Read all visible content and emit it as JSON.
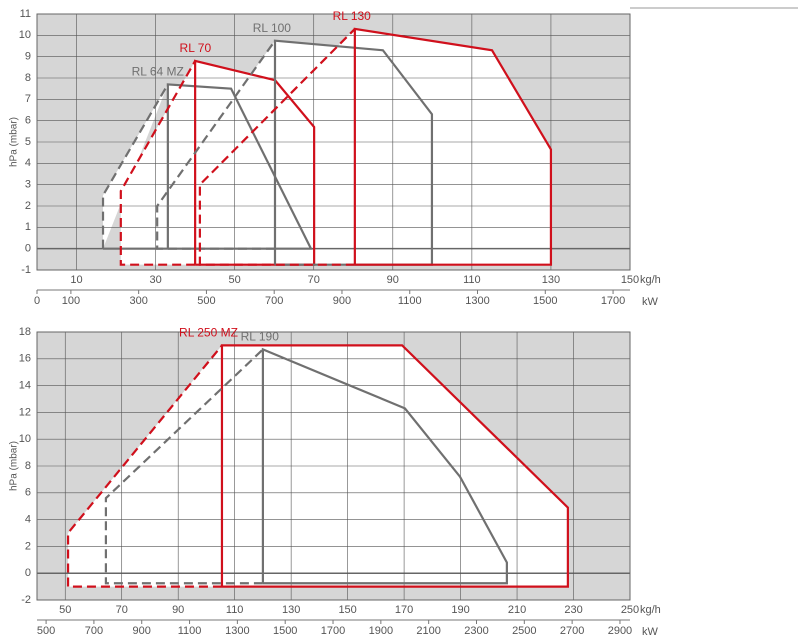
{
  "chart_data": [
    {
      "type": "line",
      "xlabel": "kg/h",
      "x2label": "kW",
      "ylabel": "hPa (mbar)",
      "xlim": [
        0,
        150
      ],
      "xticks": [
        10,
        30,
        50,
        70,
        90,
        110,
        130,
        150
      ],
      "x2lim": [
        0,
        1750
      ],
      "x2ticks": [
        0,
        100,
        300,
        500,
        700,
        900,
        1100,
        1300,
        1500,
        1700
      ],
      "ylim": [
        -1,
        11
      ],
      "yticks": [
        -1,
        0,
        1,
        2,
        3,
        4,
        5,
        6,
        7,
        8,
        9,
        10,
        11
      ],
      "grid": true,
      "series": [
        {
          "name": "RL 64 MZ",
          "color": "#707070",
          "x": [
            33.1,
            33.1,
            49.1,
            69.3,
            16.7
          ],
          "y": [
            0,
            7.7,
            7.5,
            0,
            0
          ],
          "dash_x": [
            16.7,
            16.7,
            33.1
          ],
          "dash_y": [
            0,
            2.5,
            7.7
          ]
        },
        {
          "name": "RL 70",
          "color": "#d0101c",
          "x": [
            40,
            40,
            60.2,
            70.1,
            70.1,
            40
          ],
          "y": [
            -0.75,
            8.8,
            7.9,
            5.7,
            -0.75,
            -0.75
          ],
          "dash_x": [
            40,
            21.2,
            21.2,
            40
          ],
          "dash_y": [
            -0.75,
            -0.75,
            2.7,
            8.8
          ]
        },
        {
          "name": "RL 100",
          "color": "#707070",
          "x": [
            60.2,
            60.2,
            87.5,
            99.9,
            99.9,
            60.2
          ],
          "y": [
            -0.75,
            9.75,
            9.3,
            6.3,
            -0.75,
            -0.75
          ],
          "dash_x": [
            60.2,
            30.4,
            30.4,
            60.2
          ],
          "dash_y": [
            0,
            0,
            2.0,
            9.75
          ]
        },
        {
          "name": "RL 130",
          "color": "#d0101c",
          "x": [
            80.4,
            80.4,
            115.1,
            130,
            130,
            80.4
          ],
          "y": [
            -0.75,
            10.3,
            9.3,
            4.65,
            -0.75,
            -0.75
          ],
          "dash_x": [
            80.4,
            41.2,
            41.2,
            80.4
          ],
          "dash_y": [
            -0.75,
            -0.75,
            3.0,
            10.3
          ]
        }
      ]
    },
    {
      "type": "line",
      "xlabel": "kg/h",
      "x2label": "kW",
      "ylabel": "hPa (mbar)",
      "xlim": [
        40,
        250
      ],
      "xticks": [
        50,
        70,
        90,
        110,
        130,
        150,
        170,
        190,
        210,
        230,
        250
      ],
      "x2lim": [
        462,
        2942
      ],
      "x2ticks": [
        500,
        700,
        900,
        1100,
        1300,
        1500,
        1700,
        1900,
        2100,
        2300,
        2500,
        2700,
        2900
      ],
      "ylim": [
        -2,
        18
      ],
      "yticks": [
        -2,
        0,
        2,
        4,
        6,
        8,
        10,
        12,
        14,
        16,
        18
      ],
      "grid": true,
      "series": [
        {
          "name": "RL 250 MZ",
          "color": "#d0101c",
          "x": [
            105.5,
            105.5,
            169.3,
            228,
            228,
            105.5
          ],
          "y": [
            -1,
            17,
            17,
            4.9,
            -1,
            -1
          ],
          "dash_x": [
            105.5,
            51,
            51,
            105.5
          ],
          "dash_y": [
            -1,
            -1,
            3,
            17
          ]
        },
        {
          "name": "RL 190",
          "color": "#707070",
          "x": [
            120,
            120,
            170.3,
            189.8,
            206.4,
            206.4,
            120
          ],
          "y": [
            -0.75,
            16.7,
            12.3,
            7.2,
            0.8,
            -0.75,
            -0.75
          ],
          "dash_x": [
            120,
            64.4,
            64.4,
            120
          ],
          "dash_y": [
            -0.75,
            -0.75,
            5.6,
            16.7
          ]
        }
      ]
    }
  ]
}
